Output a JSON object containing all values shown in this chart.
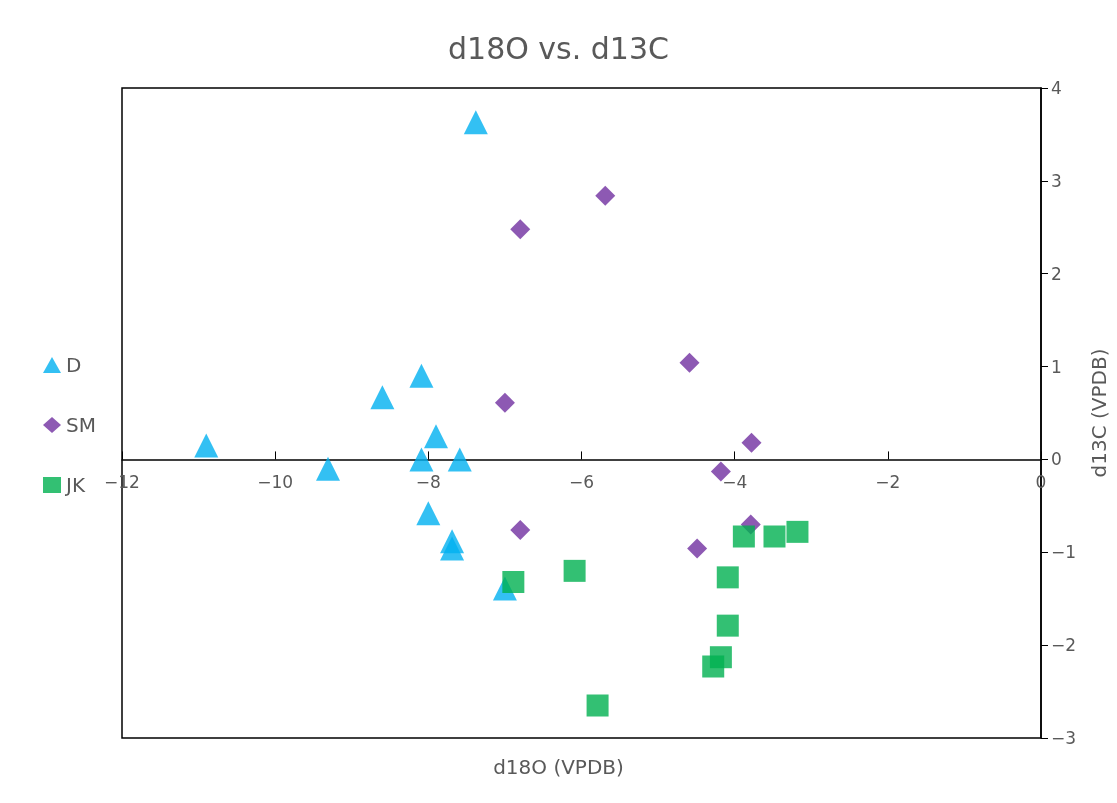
{
  "chart_data": {
    "type": "scatter",
    "title": "d18O vs. d13C",
    "xlabel": "d18O (VPDB)",
    "ylabel": "d13C (VPDB)",
    "xlim": [
      -12,
      0
    ],
    "xticks": [
      {
        "value": -12,
        "label": "−12"
      },
      {
        "value": -10,
        "label": "−10"
      },
      {
        "value": -8,
        "label": "−8"
      },
      {
        "value": -6,
        "label": "−6"
      },
      {
        "value": -4,
        "label": "−4"
      },
      {
        "value": -2,
        "label": "−2"
      },
      0
    ],
    "ylim": [
      -3,
      4
    ],
    "yticks": [
      {
        "value": -3,
        "label": "−3"
      },
      {
        "value": -2,
        "label": "−2"
      },
      {
        "value": -1,
        "label": "−1"
      },
      0,
      1,
      2,
      3,
      4
    ],
    "grid": false,
    "legend": "left",
    "series": [
      {
        "name": "D",
        "color": "#00b0f0",
        "marker": "triangle",
        "x": [
          -7.38,
          -10.9,
          -9.31,
          -8.6,
          -8.09,
          -7.9,
          -8.09,
          -7.59,
          -8.0,
          -7.69,
          -7.69,
          -7.0
        ],
        "values": [
          3.63,
          0.15,
          -0.1,
          0.67,
          0.9,
          0.25,
          0,
          0,
          -0.58,
          -0.88,
          -0.96,
          -1.39
        ]
      },
      {
        "name": "SM",
        "color": "#7030a0",
        "marker": "diamond",
        "x": [
          -5.69,
          -6.8,
          -4.59,
          -7.0,
          -3.78,
          -4.18,
          -6.8,
          -3.79,
          -4.49
        ],
        "values": [
          2.84,
          2.48,
          1.04,
          0.61,
          0.18,
          -0.13,
          -0.76,
          -0.7,
          -0.96
        ]
      },
      {
        "name": "JK",
        "color": "#00b050",
        "marker": "square",
        "x": [
          -6.89,
          -6.09,
          -5.79,
          -3.88,
          -3.48,
          -3.18,
          -4.09,
          -4.09,
          -4.18,
          -4.28
        ],
        "values": [
          -1.32,
          -1.2,
          -2.65,
          -0.83,
          -0.83,
          -0.78,
          -1.27,
          -1.79,
          -2.13,
          -2.23
        ]
      }
    ]
  }
}
